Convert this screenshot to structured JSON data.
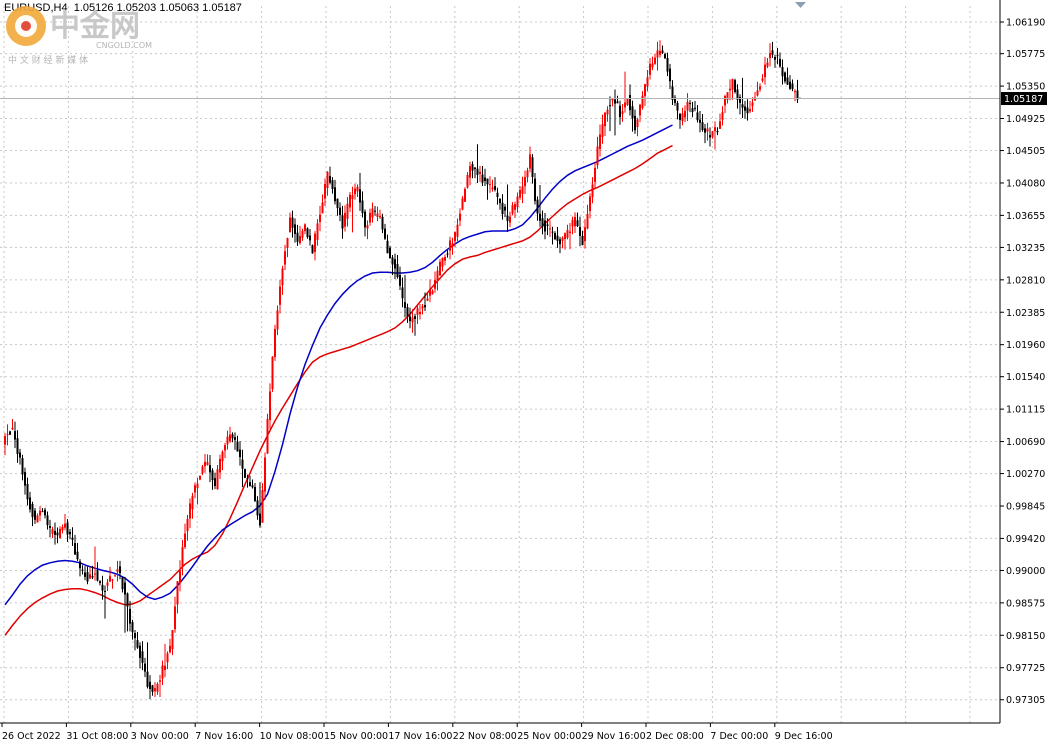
{
  "header": {
    "symbol": "EURUSD,H4",
    "ohlc": "1.05126 1.05203 1.05063 1.05187"
  },
  "price_marker": "1.05187",
  "watermark": {
    "brand": "中金网",
    "domain": "CNGOLD.COM",
    "tagline": "中 文 财 经 新 媒 体"
  },
  "colors": {
    "bull": "#ff0000",
    "bear": "#000000",
    "ma_fast": "#0000c8",
    "ma_slow": "#e00000",
    "grid": "#c8c8c8"
  },
  "chart_data": {
    "type": "candlestick",
    "title": "EURUSD,H4",
    "ylim": [
      0.97,
      1.064
    ],
    "ytick_labels": [
      "1.06190",
      "1.05775",
      "1.05350",
      "1.04925",
      "1.04505",
      "1.04080",
      "1.03655",
      "1.03235",
      "1.02810",
      "1.02385",
      "1.01960",
      "1.01540",
      "1.01115",
      "1.00690",
      "1.00270",
      "0.99845",
      "0.99420",
      "0.99000",
      "0.98575",
      "0.98150",
      "0.97725",
      "0.97305"
    ],
    "xtick_labels": [
      "26 Oct 2022",
      "31 Oct 08:00",
      "3 Nov 00:00",
      "7 Nov 16:00",
      "10 Nov 08:00",
      "15 Nov 00:00",
      "17 Nov 16:00",
      "22 Nov 08:00",
      "25 Nov 00:00",
      "29 Nov 16:00",
      "2 Dec 08:00",
      "7 Dec 00:00",
      "9 Dec 16:00"
    ],
    "last_price": 1.05187,
    "close_path": [
      [
        0,
        1.0075
      ],
      [
        3,
        1.0085
      ],
      [
        6,
        1.0045
      ],
      [
        9,
        0.9995
      ],
      [
        12,
        0.9965
      ],
      [
        15,
        0.998
      ],
      [
        18,
        0.995
      ],
      [
        21,
        0.9945
      ],
      [
        24,
        0.996
      ],
      [
        27,
        0.9935
      ],
      [
        30,
        0.9905
      ],
      [
        33,
        0.989
      ],
      [
        36,
        0.9898
      ],
      [
        39,
        0.9872
      ],
      [
        42,
        0.9887
      ],
      [
        45,
        0.9905
      ],
      [
        48,
        0.9868
      ],
      [
        51,
        0.982
      ],
      [
        54,
        0.979
      ],
      [
        57,
        0.975
      ],
      [
        60,
        0.9742
      ],
      [
        63,
        0.977
      ],
      [
        66,
        0.98
      ],
      [
        69,
        0.988
      ],
      [
        72,
        0.995
      ],
      [
        75,
        1.0
      ],
      [
        78,
        1.003
      ],
      [
        81,
        1.004
      ],
      [
        84,
        1.001
      ],
      [
        87,
        1.006
      ],
      [
        90,
        1.008
      ],
      [
        93,
        1.006
      ],
      [
        96,
        1.002
      ],
      [
        99,
        1.001
      ],
      [
        102,
        0.996
      ],
      [
        105,
        1.01
      ],
      [
        108,
        1.022
      ],
      [
        111,
        1.03
      ],
      [
        114,
        1.036
      ],
      [
        117,
        1.033
      ],
      [
        120,
        1.035
      ],
      [
        123,
        1.032
      ],
      [
        126,
        1.037
      ],
      [
        129,
        1.042
      ],
      [
        132,
        1.039
      ],
      [
        135,
        1.035
      ],
      [
        138,
        1.039
      ],
      [
        141,
        1.04
      ],
      [
        144,
        1.035
      ],
      [
        147,
        1.037
      ],
      [
        150,
        1.036
      ],
      [
        153,
        1.032
      ],
      [
        156,
        1.03
      ],
      [
        159,
        1.0255
      ],
      [
        162,
        1.0225
      ],
      [
        165,
        1.024
      ],
      [
        168,
        1.025
      ],
      [
        171,
        1.027
      ],
      [
        174,
        1.03
      ],
      [
        177,
        1.032
      ],
      [
        180,
        1.034
      ],
      [
        183,
        1.0385
      ],
      [
        186,
        1.043
      ],
      [
        189,
        1.042
      ],
      [
        192,
        1.041
      ],
      [
        195,
        1.04
      ],
      [
        198,
        1.038
      ],
      [
        201,
        1.036
      ],
      [
        204,
        1.038
      ],
      [
        207,
        1.04
      ],
      [
        210,
        1.044
      ],
      [
        213,
        1.0365
      ],
      [
        216,
        1.035
      ],
      [
        219,
        1.034
      ],
      [
        222,
        1.033
      ],
      [
        225,
        1.0345
      ],
      [
        228,
        1.036
      ],
      [
        231,
        1.033
      ],
      [
        234,
        1.039
      ],
      [
        237,
        1.045
      ],
      [
        240,
        1.05
      ],
      [
        243,
        1.052
      ],
      [
        246,
        1.05
      ],
      [
        249,
        1.052
      ],
      [
        252,
        1.048
      ],
      [
        255,
        1.052
      ],
      [
        258,
        1.056
      ],
      [
        261,
        1.058
      ],
      [
        264,
        1.0575
      ],
      [
        267,
        1.052
      ],
      [
        270,
        1.049
      ],
      [
        273,
        1.051
      ],
      [
        276,
        1.05
      ],
      [
        279,
        1.048
      ],
      [
        282,
        1.047
      ],
      [
        285,
        1.048
      ],
      [
        288,
        1.052
      ],
      [
        291,
        1.054
      ],
      [
        294,
        1.051
      ],
      [
        297,
        1.05
      ],
      [
        300,
        1.052
      ],
      [
        303,
        1.055
      ],
      [
        306,
        1.058
      ],
      [
        309,
        1.057
      ],
      [
        312,
        1.0545
      ],
      [
        315,
        1.053
      ],
      [
        318,
        1.05187
      ]
    ],
    "ma_fast_path": [
      [
        0,
        0.9855
      ],
      [
        3,
        0.9868
      ],
      [
        6,
        0.9882
      ],
      [
        9,
        0.9893
      ],
      [
        12,
        0.9901
      ],
      [
        15,
        0.9907
      ],
      [
        18,
        0.991
      ],
      [
        21,
        0.9912
      ],
      [
        24,
        0.9913
      ],
      [
        27,
        0.9912
      ],
      [
        30,
        0.991
      ],
      [
        33,
        0.9906
      ],
      [
        36,
        0.9903
      ],
      [
        39,
        0.99
      ],
      [
        42,
        0.9898
      ],
      [
        45,
        0.9895
      ],
      [
        48,
        0.989
      ],
      [
        51,
        0.9882
      ],
      [
        54,
        0.9872
      ],
      [
        57,
        0.9865
      ],
      [
        60,
        0.9862
      ],
      [
        63,
        0.9865
      ],
      [
        66,
        0.987
      ],
      [
        69,
        0.988
      ],
      [
        72,
        0.9892
      ],
      [
        75,
        0.9905
      ],
      [
        78,
        0.9919
      ],
      [
        81,
        0.9932
      ],
      [
        84,
        0.9943
      ],
      [
        87,
        0.9953
      ],
      [
        90,
        0.996
      ],
      [
        93,
        0.9966
      ],
      [
        96,
        0.9972
      ],
      [
        99,
        0.9977
      ],
      [
        102,
        0.9985
      ],
      [
        105,
        1.0
      ],
      [
        108,
        1.003
      ],
      [
        111,
        1.0065
      ],
      [
        114,
        1.0105
      ],
      [
        117,
        1.014
      ],
      [
        120,
        1.017
      ],
      [
        123,
        1.0195
      ],
      [
        126,
        1.0218
      ],
      [
        129,
        1.0235
      ],
      [
        132,
        1.025
      ],
      [
        135,
        1.0262
      ],
      [
        138,
        1.0272
      ],
      [
        141,
        1.028
      ],
      [
        144,
        1.0286
      ],
      [
        147,
        1.029
      ],
      [
        150,
        1.0291
      ],
      [
        153,
        1.0291
      ],
      [
        156,
        1.029
      ],
      [
        159,
        1.029
      ],
      [
        162,
        1.0291
      ],
      [
        165,
        1.0293
      ],
      [
        168,
        1.0297
      ],
      [
        171,
        1.0304
      ],
      [
        174,
        1.0313
      ],
      [
        177,
        1.0321
      ],
      [
        180,
        1.0328
      ],
      [
        183,
        1.0334
      ],
      [
        186,
        1.0338
      ],
      [
        189,
        1.0341
      ],
      [
        192,
        1.0344
      ],
      [
        195,
        1.0345
      ],
      [
        198,
        1.0345
      ],
      [
        201,
        1.0345
      ],
      [
        204,
        1.0348
      ],
      [
        207,
        1.0353
      ],
      [
        210,
        1.0363
      ],
      [
        213,
        1.0375
      ],
      [
        216,
        1.0388
      ],
      [
        219,
        1.04
      ],
      [
        222,
        1.041
      ],
      [
        225,
        1.0418
      ],
      [
        228,
        1.0424
      ],
      [
        231,
        1.0428
      ],
      [
        234,
        1.0432
      ],
      [
        237,
        1.0436
      ],
      [
        240,
        1.0441
      ],
      [
        243,
        1.0446
      ],
      [
        246,
        1.0451
      ],
      [
        249,
        1.0456
      ],
      [
        252,
        1.046
      ],
      [
        255,
        1.0464
      ],
      [
        258,
        1.0469
      ],
      [
        261,
        1.0474
      ],
      [
        264,
        1.0479
      ],
      [
        267,
        1.0484
      ]
    ],
    "ma_slow_path": [
      [
        0,
        0.9815
      ],
      [
        3,
        0.9828
      ],
      [
        6,
        0.984
      ],
      [
        9,
        0.985
      ],
      [
        12,
        0.9858
      ],
      [
        15,
        0.9864
      ],
      [
        18,
        0.9869
      ],
      [
        21,
        0.9873
      ],
      [
        24,
        0.9875
      ],
      [
        27,
        0.9876
      ],
      [
        30,
        0.9876
      ],
      [
        33,
        0.9874
      ],
      [
        36,
        0.9871
      ],
      [
        39,
        0.9867
      ],
      [
        42,
        0.9862
      ],
      [
        45,
        0.9858
      ],
      [
        48,
        0.9855
      ],
      [
        51,
        0.9856
      ],
      [
        54,
        0.986
      ],
      [
        57,
        0.9867
      ],
      [
        60,
        0.9874
      ],
      [
        63,
        0.9881
      ],
      [
        66,
        0.9888
      ],
      [
        69,
        0.9898
      ],
      [
        72,
        0.9908
      ],
      [
        75,
        0.9915
      ],
      [
        78,
        0.992
      ],
      [
        81,
        0.9924
      ],
      [
        84,
        0.9933
      ],
      [
        87,
        0.9948
      ],
      [
        90,
        0.9968
      ],
      [
        93,
        0.999
      ],
      [
        96,
        1.0013
      ],
      [
        99,
        1.0035
      ],
      [
        102,
        1.0057
      ],
      [
        105,
        1.0077
      ],
      [
        108,
        1.0096
      ],
      [
        111,
        1.0113
      ],
      [
        114,
        1.0129
      ],
      [
        117,
        1.0145
      ],
      [
        120,
        1.016
      ],
      [
        123,
        1.0173
      ],
      [
        126,
        1.018
      ],
      [
        129,
        1.0184
      ],
      [
        132,
        1.0187
      ],
      [
        135,
        1.019
      ],
      [
        138,
        1.0193
      ],
      [
        141,
        1.0197
      ],
      [
        144,
        1.0201
      ],
      [
        147,
        1.0205
      ],
      [
        150,
        1.0209
      ],
      [
        153,
        1.0213
      ],
      [
        156,
        1.0218
      ],
      [
        159,
        1.0226
      ],
      [
        162,
        1.0236
      ],
      [
        165,
        1.0248
      ],
      [
        168,
        1.026
      ],
      [
        171,
        1.0272
      ],
      [
        174,
        1.0283
      ],
      [
        177,
        1.0294
      ],
      [
        180,
        1.0302
      ],
      [
        183,
        1.0308
      ],
      [
        186,
        1.0311
      ],
      [
        189,
        1.0313
      ],
      [
        192,
        1.0317
      ],
      [
        195,
        1.032
      ],
      [
        198,
        1.0323
      ],
      [
        201,
        1.0326
      ],
      [
        204,
        1.0329
      ],
      [
        207,
        1.0332
      ],
      [
        210,
        1.0337
      ],
      [
        213,
        1.0345
      ],
      [
        216,
        1.0355
      ],
      [
        219,
        1.0364
      ],
      [
        222,
        1.0373
      ],
      [
        225,
        1.0381
      ],
      [
        228,
        1.0387
      ],
      [
        231,
        1.0393
      ],
      [
        234,
        1.0398
      ],
      [
        237,
        1.0402
      ],
      [
        240,
        1.0407
      ],
      [
        243,
        1.0412
      ],
      [
        246,
        1.0417
      ],
      [
        249,
        1.0422
      ],
      [
        252,
        1.0427
      ],
      [
        255,
        1.0433
      ],
      [
        258,
        1.044
      ],
      [
        261,
        1.0447
      ],
      [
        264,
        1.0452
      ],
      [
        267,
        1.0457
      ]
    ]
  }
}
